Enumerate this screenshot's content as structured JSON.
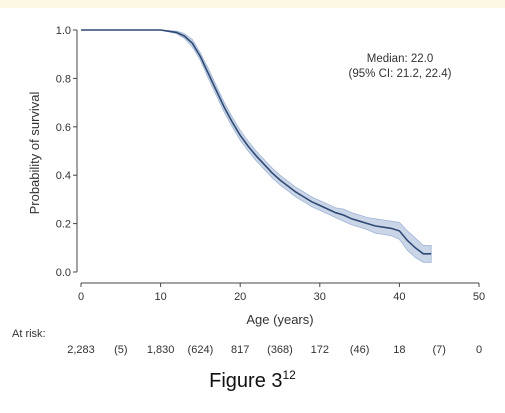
{
  "chart_data": {
    "type": "line",
    "subtype": "kaplan-meier",
    "xlabel": "Age (years)",
    "ylabel": "Probability of survival",
    "xlim": [
      0,
      50
    ],
    "ylim": [
      0,
      1.0
    ],
    "xticks": [
      "0",
      "10",
      "20",
      "30",
      "40",
      "50"
    ],
    "yticks": [
      "0.0",
      "0.2",
      "0.4",
      "0.6",
      "0.8",
      "1.0"
    ],
    "grid": false,
    "colors": {
      "line": "#2f4a73",
      "band": "#9fb4d6"
    },
    "annotation": [
      "Median: 22.0",
      "(95% CI: 21.2, 22.4)"
    ],
    "series": [
      {
        "x": [
          0,
          10,
          12,
          13,
          14,
          15,
          16,
          17,
          18,
          19,
          20,
          21,
          22,
          23,
          24,
          25,
          26,
          27,
          28,
          29,
          30,
          31,
          32,
          33,
          34,
          35,
          36,
          37,
          38,
          39,
          40,
          41,
          42,
          43,
          44
        ],
        "y": [
          1.0,
          1.0,
          0.99,
          0.975,
          0.945,
          0.89,
          0.82,
          0.75,
          0.68,
          0.62,
          0.565,
          0.52,
          0.48,
          0.445,
          0.41,
          0.38,
          0.355,
          0.33,
          0.31,
          0.29,
          0.275,
          0.26,
          0.245,
          0.235,
          0.22,
          0.21,
          0.2,
          0.19,
          0.185,
          0.18,
          0.17,
          0.13,
          0.1,
          0.075,
          0.075
        ],
        "lower": [
          1.0,
          1.0,
          0.985,
          0.965,
          0.93,
          0.875,
          0.8,
          0.73,
          0.66,
          0.6,
          0.545,
          0.5,
          0.46,
          0.425,
          0.39,
          0.36,
          0.335,
          0.31,
          0.29,
          0.27,
          0.255,
          0.24,
          0.225,
          0.21,
          0.195,
          0.185,
          0.175,
          0.16,
          0.155,
          0.15,
          0.135,
          0.09,
          0.06,
          0.04,
          0.04
        ],
        "upper": [
          1.0,
          1.0,
          0.995,
          0.985,
          0.96,
          0.905,
          0.84,
          0.77,
          0.7,
          0.64,
          0.585,
          0.54,
          0.5,
          0.465,
          0.43,
          0.4,
          0.375,
          0.35,
          0.33,
          0.31,
          0.295,
          0.28,
          0.265,
          0.26,
          0.245,
          0.235,
          0.225,
          0.22,
          0.215,
          0.21,
          0.205,
          0.17,
          0.14,
          0.11,
          0.11
        ]
      }
    ],
    "at_risk": {
      "label": "At risk:",
      "values": [
        "2,283",
        "(5)",
        "1,830",
        "(624)",
        "817",
        "(368)",
        "172",
        "(46)",
        "18",
        "(7)",
        "0"
      ]
    }
  },
  "caption": {
    "text": "Figure 3",
    "sup": "12"
  }
}
